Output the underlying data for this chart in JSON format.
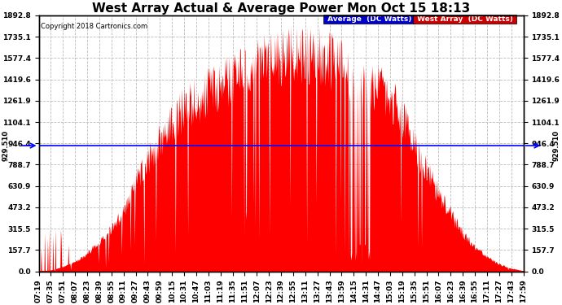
{
  "title": "West Array Actual & Average Power Mon Oct 15 18:13",
  "copyright": "Copyright 2018 Cartronics.com",
  "legend_labels": [
    "Average  (DC Watts)",
    "West Array  (DC Watts)"
  ],
  "legend_bg_colors": [
    "#0000cc",
    "#cc0000"
  ],
  "average_value": 929.51,
  "y_ticks": [
    0.0,
    157.7,
    315.5,
    473.2,
    630.9,
    788.7,
    946.4,
    1104.1,
    1261.9,
    1419.6,
    1577.4,
    1735.1,
    1892.8
  ],
  "ymin": 0.0,
  "ymax": 1892.8,
  "fill_color": "#ff0000",
  "avg_line_color": "#0000ff",
  "background_color": "#ffffff",
  "grid_color": "#bbbbbb",
  "title_fontsize": 11,
  "tick_fontsize": 6.5,
  "copyright_fontsize": 6,
  "x_labels": [
    "07:19",
    "07:35",
    "07:51",
    "08:07",
    "08:23",
    "08:39",
    "08:55",
    "09:11",
    "09:27",
    "09:43",
    "09:59",
    "10:15",
    "10:31",
    "10:47",
    "11:03",
    "11:19",
    "11:35",
    "11:51",
    "12:07",
    "12:23",
    "12:39",
    "12:55",
    "13:11",
    "13:27",
    "13:43",
    "13:59",
    "14:15",
    "14:31",
    "14:47",
    "15:03",
    "15:19",
    "15:35",
    "15:51",
    "16:07",
    "16:23",
    "16:39",
    "16:55",
    "17:11",
    "17:27",
    "17:43",
    "17:59"
  ]
}
